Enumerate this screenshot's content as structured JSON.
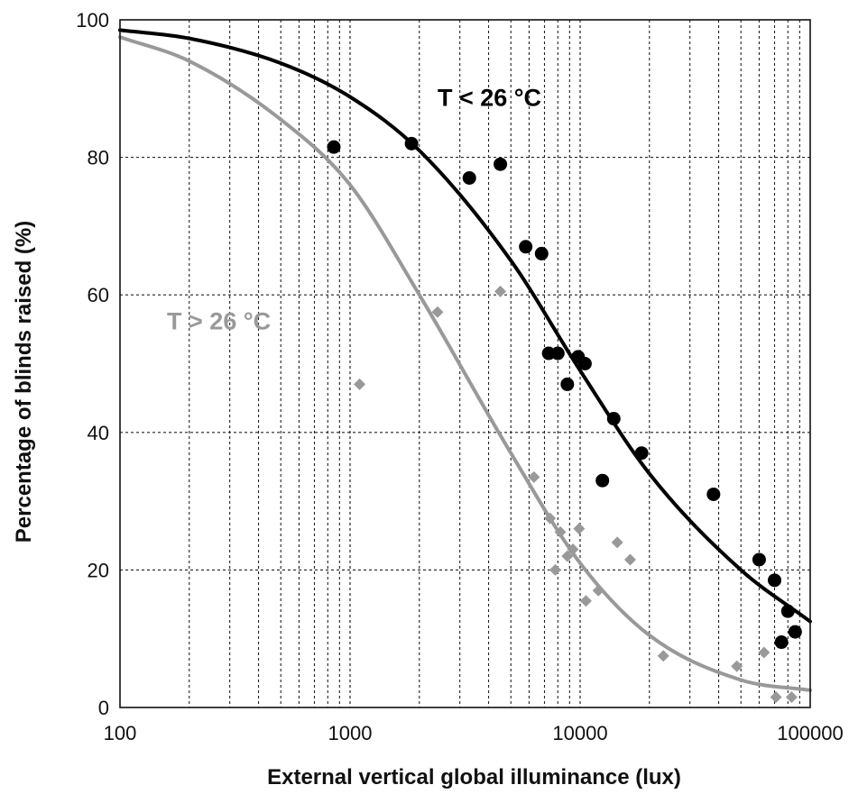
{
  "chart_data": {
    "type": "scatter",
    "xlabel": "External vertical global illuminance (lux)",
    "ylabel": "Percentage of blinds raised (%)",
    "xscale": "log",
    "xlim": [
      100,
      100000
    ],
    "ylim": [
      0,
      100
    ],
    "x_ticks": [
      "100",
      "1000",
      "10000",
      "100000"
    ],
    "y_ticks": [
      "0",
      "20",
      "40",
      "60",
      "80",
      "100"
    ],
    "grid": true,
    "annotations": [
      {
        "text": "T < 26 °C",
        "series": "cool",
        "x": 2400,
        "y": 87.5
      },
      {
        "text": "T > 26 °C",
        "series": "warm",
        "x": 160,
        "y": 55
      }
    ],
    "series": [
      {
        "id": "cool",
        "color": "#000000",
        "marker": "circle",
        "points": [
          [
            850,
            81.5
          ],
          [
            1850,
            82
          ],
          [
            3300,
            77
          ],
          [
            4500,
            79
          ],
          [
            5800,
            67
          ],
          [
            6800,
            66
          ],
          [
            7300,
            51.5
          ],
          [
            8000,
            51.5
          ],
          [
            8800,
            47
          ],
          [
            9800,
            51
          ],
          [
            10500,
            50
          ],
          [
            12500,
            33
          ],
          [
            14000,
            42
          ],
          [
            18500,
            37
          ],
          [
            38000,
            31
          ],
          [
            60000,
            21.5
          ],
          [
            70000,
            18.5
          ],
          [
            75000,
            9.5
          ],
          [
            80000,
            14
          ],
          [
            86000,
            11
          ]
        ],
        "fit": [
          [
            100,
            98.5
          ],
          [
            200,
            97.3
          ],
          [
            500,
            93.7
          ],
          [
            1000,
            88.8
          ],
          [
            2000,
            81
          ],
          [
            5000,
            65
          ],
          [
            10000,
            49
          ],
          [
            20000,
            34
          ],
          [
            50000,
            20
          ],
          [
            100000,
            12.5
          ]
        ]
      },
      {
        "id": "warm",
        "color": "#999999",
        "marker": "diamond",
        "points": [
          [
            1100,
            47
          ],
          [
            2400,
            57.5
          ],
          [
            4500,
            60.5
          ],
          [
            6300,
            33.5
          ],
          [
            7400,
            27.5
          ],
          [
            7800,
            20
          ],
          [
            8200,
            25.5
          ],
          [
            8800,
            22
          ],
          [
            9300,
            23
          ],
          [
            9900,
            26
          ],
          [
            10600,
            15.5
          ],
          [
            12000,
            17
          ],
          [
            14500,
            24
          ],
          [
            16500,
            21.5
          ],
          [
            23000,
            7.5
          ],
          [
            48000,
            6
          ],
          [
            63000,
            8
          ],
          [
            71000,
            1.5
          ],
          [
            83000,
            1.5
          ]
        ],
        "fit": [
          [
            100,
            97.5
          ],
          [
            200,
            94
          ],
          [
            500,
            85.5
          ],
          [
            1000,
            76
          ],
          [
            2000,
            60
          ],
          [
            5000,
            37
          ],
          [
            10000,
            21
          ],
          [
            20000,
            10.5
          ],
          [
            50000,
            4
          ],
          [
            100000,
            2.5
          ]
        ]
      }
    ]
  }
}
